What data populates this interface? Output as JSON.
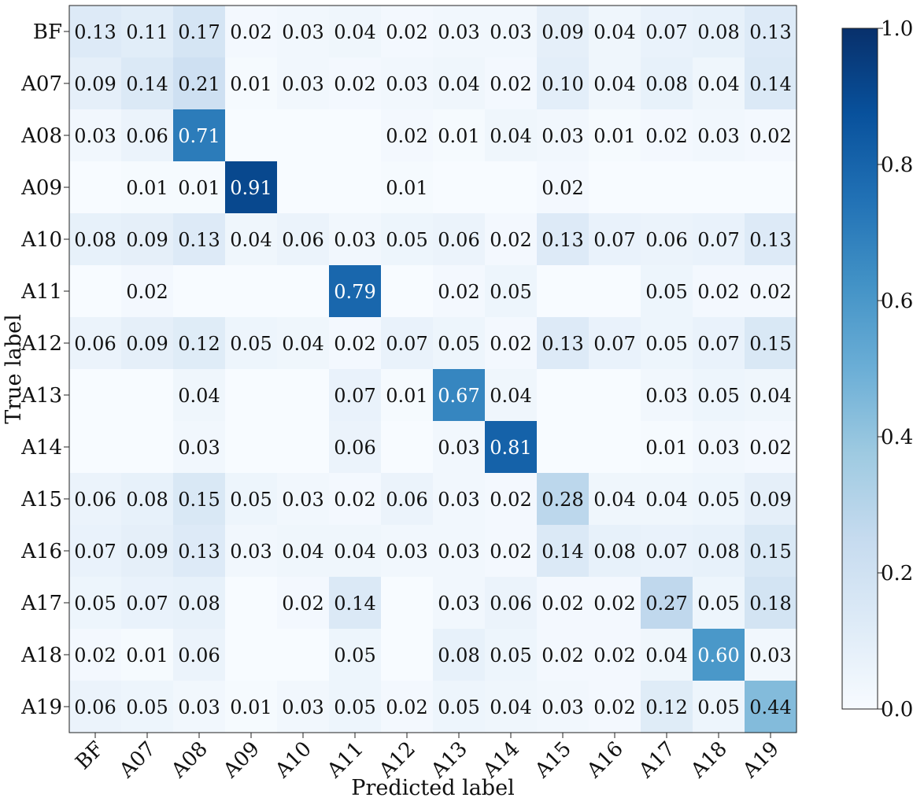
{
  "chart_data": {
    "type": "heatmap",
    "title": "",
    "xlabel": "Predicted label",
    "ylabel": "True label",
    "x_categories": [
      "BF",
      "A07",
      "A08",
      "A09",
      "A10",
      "A11",
      "A12",
      "A13",
      "A14",
      "A15",
      "A16",
      "A17",
      "A18",
      "A19"
    ],
    "y_categories": [
      "BF",
      "A07",
      "A08",
      "A09",
      "A10",
      "A11",
      "A12",
      "A13",
      "A14",
      "A15",
      "A16",
      "A17",
      "A18",
      "A19"
    ],
    "values": [
      [
        0.13,
        0.11,
        0.17,
        0.02,
        0.03,
        0.04,
        0.02,
        0.03,
        0.03,
        0.09,
        0.04,
        0.07,
        0.08,
        0.13
      ],
      [
        0.09,
        0.14,
        0.21,
        0.01,
        0.03,
        0.02,
        0.03,
        0.04,
        0.02,
        0.1,
        0.04,
        0.08,
        0.04,
        0.14
      ],
      [
        0.03,
        0.06,
        0.71,
        null,
        null,
        null,
        0.02,
        0.01,
        0.04,
        0.03,
        0.01,
        0.02,
        0.03,
        0.02
      ],
      [
        null,
        0.01,
        0.01,
        0.91,
        null,
        null,
        0.01,
        null,
        null,
        0.02,
        null,
        null,
        null,
        null
      ],
      [
        0.08,
        0.09,
        0.13,
        0.04,
        0.06,
        0.03,
        0.05,
        0.06,
        0.02,
        0.13,
        0.07,
        0.06,
        0.07,
        0.13
      ],
      [
        null,
        0.02,
        null,
        null,
        null,
        0.79,
        null,
        0.02,
        0.05,
        null,
        null,
        0.05,
        0.02,
        0.02
      ],
      [
        0.06,
        0.09,
        0.12,
        0.05,
        0.04,
        0.02,
        0.07,
        0.05,
        0.02,
        0.13,
        0.07,
        0.05,
        0.07,
        0.15
      ],
      [
        null,
        null,
        0.04,
        null,
        null,
        0.07,
        0.01,
        0.67,
        0.04,
        null,
        null,
        0.03,
        0.05,
        0.04
      ],
      [
        null,
        null,
        0.03,
        null,
        null,
        0.06,
        null,
        0.03,
        0.81,
        null,
        null,
        0.01,
        0.03,
        0.02
      ],
      [
        0.06,
        0.08,
        0.15,
        0.05,
        0.03,
        0.02,
        0.06,
        0.03,
        0.02,
        0.28,
        0.04,
        0.04,
        0.05,
        0.09
      ],
      [
        0.07,
        0.09,
        0.13,
        0.03,
        0.04,
        0.04,
        0.03,
        0.03,
        0.02,
        0.14,
        0.08,
        0.07,
        0.08,
        0.15
      ],
      [
        0.05,
        0.07,
        0.08,
        null,
        0.02,
        0.14,
        null,
        0.03,
        0.06,
        0.02,
        0.02,
        0.27,
        0.05,
        0.18
      ],
      [
        0.02,
        0.01,
        0.06,
        null,
        null,
        0.05,
        null,
        0.08,
        0.05,
        0.02,
        0.02,
        0.04,
        0.6,
        0.03
      ],
      [
        0.06,
        0.05,
        0.03,
        0.01,
        0.03,
        0.05,
        0.02,
        0.05,
        0.04,
        0.03,
        0.02,
        0.12,
        0.05,
        0.44
      ]
    ],
    "value_range": [
      0.0,
      1.0
    ],
    "colormap": "Blues",
    "colorbar": {
      "ticks": [
        0.0,
        0.2,
        0.4,
        0.6,
        0.8,
        1.0
      ],
      "tick_labels": [
        "0.0",
        "0.2",
        "0.4",
        "0.6",
        "0.8",
        "1.0"
      ]
    },
    "colors": {
      "low": "#f7fbff",
      "high": "#08306b",
      "text_dark": "#111111",
      "text_light": "#ffffff"
    }
  }
}
